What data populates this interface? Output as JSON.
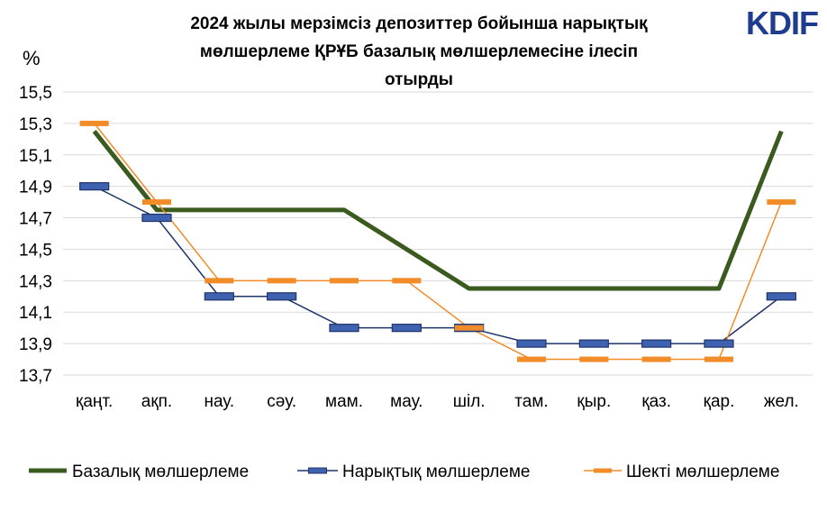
{
  "logo": {
    "text": "KDIF",
    "color": "#1f3d8f"
  },
  "chart_data": {
    "type": "line",
    "title_lines": [
      "2024 жылы мерзімсіз депозиттер бойынша нарықтық",
      "мөлшерлеме ҚРҰБ базалық мөлшерлемесіне ілесіп",
      "отырды"
    ],
    "ylabel": "%",
    "xlabel": "",
    "ylim": [
      13.7,
      15.5
    ],
    "yticks": [
      "15,5",
      "15,3",
      "15,1",
      "14,9",
      "14,7",
      "14,5",
      "14,3",
      "14,1",
      "13,9",
      "13,7"
    ],
    "ytick_values": [
      15.5,
      15.3,
      15.1,
      14.9,
      14.7,
      14.5,
      14.3,
      14.1,
      13.9,
      13.7
    ],
    "grid": true,
    "legend_position": "bottom",
    "categories": [
      "қаңт.",
      "ақп.",
      "нау.",
      "сәу.",
      "мам.",
      "мау.",
      "шіл.",
      "там.",
      "қыр.",
      "қаз.",
      "қар.",
      "жел."
    ],
    "series": [
      {
        "name": "Базалық мөлшерлеме",
        "color": "#3a5a1e",
        "marker": "none",
        "values": [
          15.25,
          14.75,
          14.75,
          14.75,
          14.75,
          null,
          14.25,
          14.25,
          14.25,
          14.25,
          14.25,
          15.25
        ],
        "points": [
          [
            0,
            15.25
          ],
          [
            1,
            14.75
          ],
          [
            4.0,
            14.75
          ],
          [
            6.0,
            14.25
          ],
          [
            10.0,
            14.25
          ],
          [
            11,
            15.25
          ]
        ]
      },
      {
        "name": "Нарықтық мөлшерлеме",
        "color": "#1f3468",
        "marker_color": "#3f62b0",
        "marker": "dash",
        "values": [
          14.9,
          14.7,
          14.2,
          14.2,
          14.0,
          14.0,
          14.0,
          13.9,
          13.9,
          13.9,
          13.9,
          14.2
        ]
      },
      {
        "name": "Шекті мөлшерлеме",
        "color": "#f28c28",
        "marker_color": "#f28c28",
        "marker": "dash",
        "values": [
          15.3,
          14.8,
          14.3,
          14.3,
          14.3,
          14.3,
          14.0,
          13.8,
          13.8,
          13.8,
          13.8,
          14.8
        ]
      }
    ]
  }
}
